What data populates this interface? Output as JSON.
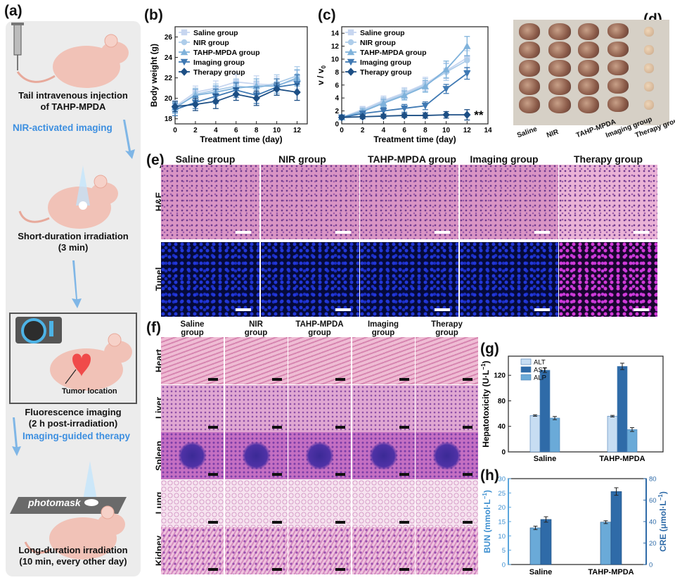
{
  "panels": {
    "a": "(a)",
    "b": "(b)",
    "c": "(c)",
    "d": "(d)",
    "e": "(e)",
    "f": "(f)",
    "g": "(g)",
    "h": "(h)"
  },
  "schematic": {
    "step1": "Tail intravenous injection",
    "step1b": "of TAHP-MPDA",
    "arrow1": "NIR-activated imaging",
    "step2": "Short-duration irradiation",
    "step2b": "(3 min)",
    "tumor_location": "Tumor location",
    "step3": "Fluorescence imaging",
    "step3b": "(2 h post-irradiation)",
    "arrow2": "Imaging-guided therapy",
    "photomask": "photomask",
    "step4": "Long-duration irradiation",
    "step4b": "(10 min, every other day)"
  },
  "colors": {
    "saline": "#c7d6f0",
    "nir": "#aecdea",
    "tahp": "#7fb2db",
    "imaging": "#3f79b3",
    "therapy": "#1d4f85",
    "accent_blue": "#3d8fe0"
  },
  "section_e": {
    "groups": [
      "Saline group",
      "NIR  group",
      "TAHP-MPDA group",
      "Imaging group",
      "Therapy group"
    ],
    "rows": [
      "H&E",
      "Tunel"
    ]
  },
  "section_f": {
    "groups": [
      [
        "Saline",
        "group"
      ],
      [
        "NIR",
        "group"
      ],
      [
        "TAHP-MPDA",
        "group"
      ],
      [
        "Imaging",
        "group"
      ],
      [
        "Therapy",
        "group"
      ]
    ],
    "rows": [
      "Heart",
      "Liver",
      "Spleen",
      "Lung",
      "Kidney"
    ]
  },
  "section_d": {
    "labels": [
      "Saline",
      "NIR",
      "TAHP-MPDA",
      "Imaging group",
      "Therapy group"
    ]
  },
  "chart_data": [
    {
      "id": "b",
      "type": "line",
      "x": [
        0,
        2,
        4,
        6,
        8,
        10,
        12
      ],
      "xlabel": "Treatment time (day)",
      "ylabel": "Body weight (g)",
      "xlim": [
        0,
        13
      ],
      "ylim": [
        17.5,
        27
      ],
      "xticks": [
        0,
        2,
        4,
        6,
        8,
        10,
        12
      ],
      "yticks": [
        18,
        20,
        22,
        24,
        26
      ],
      "legend_position": "top-left",
      "series": [
        {
          "name": "Saline group",
          "marker": "square",
          "values": [
            19.2,
            20.6,
            21.0,
            21.6,
            21.4,
            21.3,
            21.8
          ],
          "err": [
            0.6,
            0.6,
            0.7,
            0.7,
            0.8,
            0.8,
            0.9
          ]
        },
        {
          "name": "NIR group",
          "marker": "circle",
          "values": [
            19.0,
            20.4,
            20.8,
            21.2,
            21.0,
            21.5,
            22.2
          ],
          "err": [
            0.5,
            0.6,
            0.6,
            0.7,
            0.7,
            0.8,
            0.9
          ]
        },
        {
          "name": "TAHP-MPDA group",
          "marker": "triangle-up",
          "values": [
            19.1,
            20.3,
            20.6,
            21.0,
            21.2,
            21.2,
            22.0
          ],
          "err": [
            0.5,
            0.6,
            0.6,
            0.6,
            0.7,
            0.7,
            0.8
          ]
        },
        {
          "name": "Imaging group",
          "marker": "triangle-down",
          "values": [
            18.9,
            19.6,
            20.2,
            20.8,
            20.3,
            21.1,
            21.4
          ],
          "err": [
            0.6,
            0.6,
            0.7,
            0.7,
            0.8,
            0.8,
            0.9
          ]
        },
        {
          "name": "Therapy group",
          "marker": "diamond",
          "values": [
            19.2,
            19.4,
            19.7,
            20.4,
            20.0,
            20.9,
            20.6
          ],
          "err": [
            0.5,
            0.6,
            0.7,
            0.6,
            0.7,
            0.6,
            0.8
          ]
        }
      ]
    },
    {
      "id": "c",
      "type": "line",
      "x": [
        0,
        2,
        4,
        6,
        8,
        10,
        12
      ],
      "xlabel": "Treatment time (day)",
      "ylabel": "v / v",
      "ylabel_sub": "0",
      "xlim": [
        0,
        14
      ],
      "ylim": [
        0,
        15
      ],
      "xticks": [
        0,
        2,
        4,
        6,
        8,
        10,
        12,
        14
      ],
      "yticks": [
        0,
        2,
        4,
        6,
        8,
        10,
        12,
        14
      ],
      "legend_position": "top-left",
      "annotation": "**",
      "series": [
        {
          "name": "Saline group",
          "marker": "square",
          "values": [
            1.0,
            2.2,
            3.6,
            4.8,
            6.2,
            8.2,
            10.2
          ],
          "err": [
            0.2,
            0.5,
            0.7,
            0.8,
            1.0,
            1.2,
            1.6
          ]
        },
        {
          "name": "NIR group",
          "marker": "circle",
          "values": [
            1.0,
            2.0,
            3.4,
            4.6,
            6.0,
            8.0,
            9.8
          ],
          "err": [
            0.2,
            0.5,
            0.7,
            0.8,
            1.0,
            1.3,
            1.5
          ]
        },
        {
          "name": "TAHP-MPDA group",
          "marker": "triangle-up",
          "values": [
            1.0,
            1.9,
            3.2,
            4.4,
            5.8,
            8.4,
            12.0
          ],
          "err": [
            0.2,
            0.4,
            0.6,
            0.7,
            0.9,
            1.3,
            1.5
          ]
        },
        {
          "name": "Imaging group",
          "marker": "triangle-down",
          "values": [
            1.0,
            1.6,
            2.0,
            2.4,
            2.8,
            5.4,
            7.8
          ],
          "err": [
            0.2,
            0.4,
            0.5,
            0.6,
            0.6,
            0.7,
            0.9
          ]
        },
        {
          "name": "Therapy group",
          "marker": "diamond",
          "values": [
            1.0,
            1.1,
            1.2,
            1.3,
            1.3,
            1.4,
            1.4
          ],
          "err": [
            0.2,
            0.3,
            0.3,
            0.3,
            0.4,
            0.5,
            0.8
          ]
        }
      ]
    },
    {
      "id": "g",
      "type": "bar",
      "categories": [
        "Saline",
        "TAHP-MPDA"
      ],
      "ylabel": "Hepatotoxicity (U·L",
      "ylabel_sup": "−1",
      "ylabel_tail": ")",
      "ylim": [
        0,
        150
      ],
      "yticks": [
        0,
        40,
        80,
        120
      ],
      "legend_position": "top-left",
      "series": [
        {
          "name": "ALT",
          "values": [
            57,
            56
          ],
          "err": [
            1.2,
            1.2
          ]
        },
        {
          "name": "AST",
          "values": [
            128,
            134
          ],
          "err": [
            3.5,
            5
          ]
        },
        {
          "name": "ALP",
          "values": [
            53,
            35
          ],
          "err": [
            2.5,
            3
          ]
        }
      ]
    },
    {
      "id": "h",
      "type": "bar",
      "categories": [
        "Saline",
        "TAHP-MPDA"
      ],
      "ylabel_left": "BUN (mmol·L",
      "ylabel_left_sup": "−1",
      "ylabel_left_tail": ")",
      "ylabel_right": "CRE (μmol·L",
      "ylabel_right_sup": "−1",
      "ylabel_right_tail": ")",
      "ylim_left": [
        0,
        30
      ],
      "yticks_left": [
        0,
        5,
        10,
        15,
        20,
        25,
        30
      ],
      "ylim_right": [
        0,
        80
      ],
      "yticks_right": [
        0,
        20,
        40,
        60,
        80
      ],
      "series": [
        {
          "name": "BUN",
          "axis": "left",
          "values": [
            12.8,
            14.8
          ],
          "err": [
            0.6,
            0.5
          ]
        },
        {
          "name": "CRE",
          "axis": "right",
          "values": [
            42,
            68
          ],
          "err": [
            2.5,
            3.5
          ]
        }
      ]
    }
  ]
}
